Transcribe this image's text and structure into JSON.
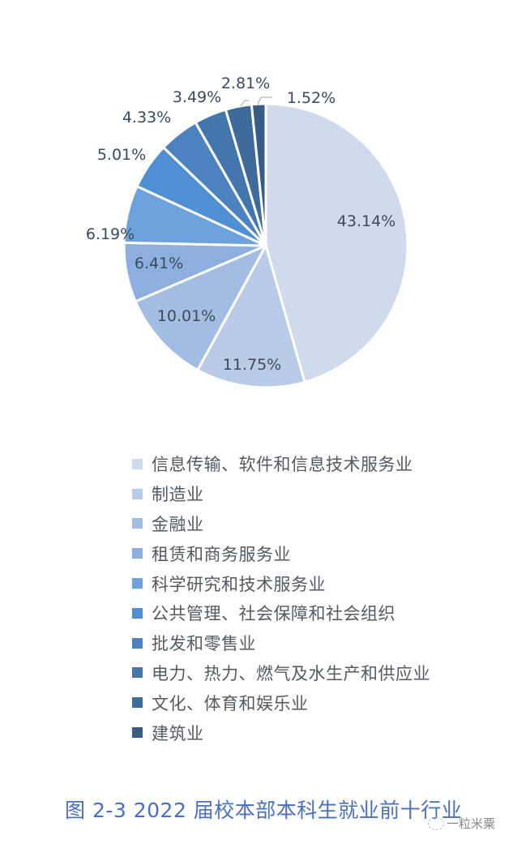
{
  "chart_data": {
    "type": "pie",
    "title": "图 2-3 2022 届校本部本科生就业前十行业",
    "start_angle": "12 o'clock, clockwise",
    "legend_position": "bottom",
    "categories": [
      "信息传输、软件和信息技术服务业",
      "制造业",
      "金融业",
      "租赁和商务服务业",
      "科学研究和技术服务业",
      "公共管理、社会保障和社会组织",
      "批发和零售业",
      "电力、热力、燃气及水生产和供应业",
      "文化、体育和娱乐业",
      "建筑业"
    ],
    "values": [
      43.14,
      11.75,
      10.01,
      6.41,
      6.19,
      5.01,
      4.33,
      3.49,
      2.81,
      1.52
    ],
    "labels": [
      "43.14%",
      "11.75%",
      "10.01%",
      "6.41%",
      "6.19%",
      "5.01%",
      "4.33%",
      "3.49%",
      "2.81%",
      "1.52%"
    ],
    "colors": [
      "#cfdaec",
      "#b9cbe6",
      "#a3bde2",
      "#8dafe0",
      "#6ea2dc",
      "#4f8fd4",
      "#4c82c0",
      "#4575ad",
      "#3f6a9c",
      "#385c86"
    ],
    "unit": "%"
  },
  "caption": "图 2-3 2022 届校本部本科生就业前十行业",
  "watermark": "一粒米粟"
}
